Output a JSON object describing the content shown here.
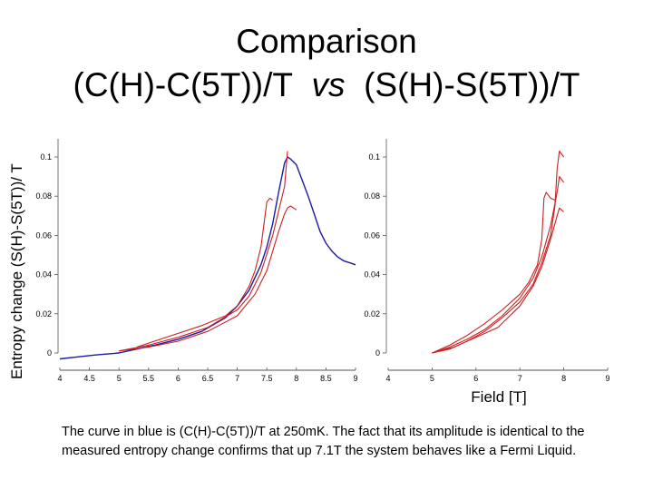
{
  "title": {
    "line1": "Comparison",
    "line2_left": "(C(H)-C(5T))/T",
    "line2_mid": "vs",
    "line2_right": "(S(H)-S(5T))/T"
  },
  "ylabel": "Entropy change (S(H)-S(5T))/ T",
  "xlabel": "Field [T]",
  "caption": "The curve in blue is (C(H)-C(5T))/T at 250mK. The fact that its amplitude is identical to the measured entropy change confirms that up 7.1T the system behaves like a Fermi Liquid.",
  "colors": {
    "blue": "#1a1aa8",
    "red": "#cc1f1f",
    "axis": "#555555"
  },
  "chart_data": [
    {
      "type": "line",
      "panel": "left",
      "xlim": [
        4,
        9
      ],
      "ylim": [
        0,
        0.1
      ],
      "xticks": [
        "4",
        "4.5",
        "5",
        "5.5",
        "6",
        "6.5",
        "7",
        "7.5",
        "8",
        "8.5",
        "9"
      ],
      "yticks": [
        "0",
        "0.02",
        "0.04",
        "0.06",
        "0.08",
        "0.1"
      ],
      "series": [
        {
          "color": "blue",
          "x": [
            4.0,
            4.3,
            4.6,
            5.0,
            5.3,
            5.6,
            6.0,
            6.4,
            6.8,
            7.0,
            7.2,
            7.4,
            7.5,
            7.6,
            7.7,
            7.8,
            7.85,
            7.9,
            8.0,
            8.1,
            8.2,
            8.3,
            8.4,
            8.5,
            8.6,
            8.7,
            8.8,
            8.9,
            9.0
          ],
          "y": [
            -0.003,
            -0.002,
            -0.001,
            0.0,
            0.002,
            0.004,
            0.007,
            0.011,
            0.018,
            0.024,
            0.032,
            0.045,
            0.054,
            0.066,
            0.082,
            0.097,
            0.1,
            0.099,
            0.096,
            0.088,
            0.08,
            0.071,
            0.062,
            0.056,
            0.052,
            0.049,
            0.047,
            0.046,
            0.045
          ]
        },
        {
          "color": "red",
          "x": [
            5.3,
            5.6,
            6.0,
            6.4,
            6.8,
            7.0,
            7.2,
            7.3,
            7.4,
            7.5,
            7.55,
            7.6
          ],
          "y": [
            0.003,
            0.006,
            0.01,
            0.014,
            0.019,
            0.024,
            0.034,
            0.042,
            0.054,
            0.077,
            0.079,
            0.078
          ]
        },
        {
          "color": "red",
          "x": [
            5.0,
            5.5,
            6.0,
            6.5,
            7.0,
            7.2,
            7.4,
            7.6,
            7.8,
            7.85
          ],
          "y": [
            0.001,
            0.004,
            0.008,
            0.013,
            0.022,
            0.029,
            0.041,
            0.06,
            0.085,
            0.103
          ]
        },
        {
          "color": "red",
          "x": [
            5.0,
            5.5,
            6.0,
            6.5,
            7.0,
            7.3,
            7.5,
            7.7,
            7.8,
            7.85,
            7.9,
            8.0
          ],
          "y": [
            0.001,
            0.003,
            0.006,
            0.011,
            0.019,
            0.03,
            0.042,
            0.062,
            0.071,
            0.074,
            0.075,
            0.073
          ]
        }
      ]
    },
    {
      "type": "line",
      "panel": "right",
      "xlim": [
        4,
        9
      ],
      "ylim": [
        0,
        0.1
      ],
      "xticks": [
        "4",
        "5",
        "6",
        "7",
        "8",
        "9"
      ],
      "yticks": [
        "0",
        "0.02",
        "0.04",
        "0.06",
        "0.08",
        "0.1"
      ],
      "series": [
        {
          "color": "red",
          "x": [
            5.0,
            5.4,
            5.8,
            6.2,
            6.6,
            7.0,
            7.2,
            7.4,
            7.5,
            7.55,
            7.6,
            7.7,
            7.8
          ],
          "y": [
            0.0,
            0.004,
            0.009,
            0.015,
            0.022,
            0.03,
            0.036,
            0.045,
            0.058,
            0.079,
            0.082,
            0.079,
            0.078
          ]
        },
        {
          "color": "red",
          "x": [
            5.0,
            5.4,
            5.8,
            6.2,
            6.6,
            7.0,
            7.3,
            7.5,
            7.7,
            7.85,
            7.9,
            8.0
          ],
          "y": [
            0.0,
            0.003,
            0.007,
            0.012,
            0.019,
            0.028,
            0.038,
            0.049,
            0.065,
            0.082,
            0.09,
            0.087
          ]
        },
        {
          "color": "red",
          "x": [
            5.0,
            5.4,
            5.8,
            6.2,
            6.6,
            7.0,
            7.3,
            7.5,
            7.7,
            7.8,
            7.85,
            7.9,
            8.0
          ],
          "y": [
            0.0,
            0.002,
            0.006,
            0.011,
            0.018,
            0.026,
            0.035,
            0.046,
            0.06,
            0.075,
            0.094,
            0.103,
            0.1
          ]
        },
        {
          "color": "red",
          "x": [
            5.0,
            5.5,
            6.0,
            6.5,
            7.0,
            7.3,
            7.5,
            7.7,
            7.85,
            7.9,
            8.0
          ],
          "y": [
            0.0,
            0.003,
            0.008,
            0.013,
            0.024,
            0.034,
            0.044,
            0.058,
            0.07,
            0.074,
            0.072
          ]
        }
      ]
    }
  ]
}
